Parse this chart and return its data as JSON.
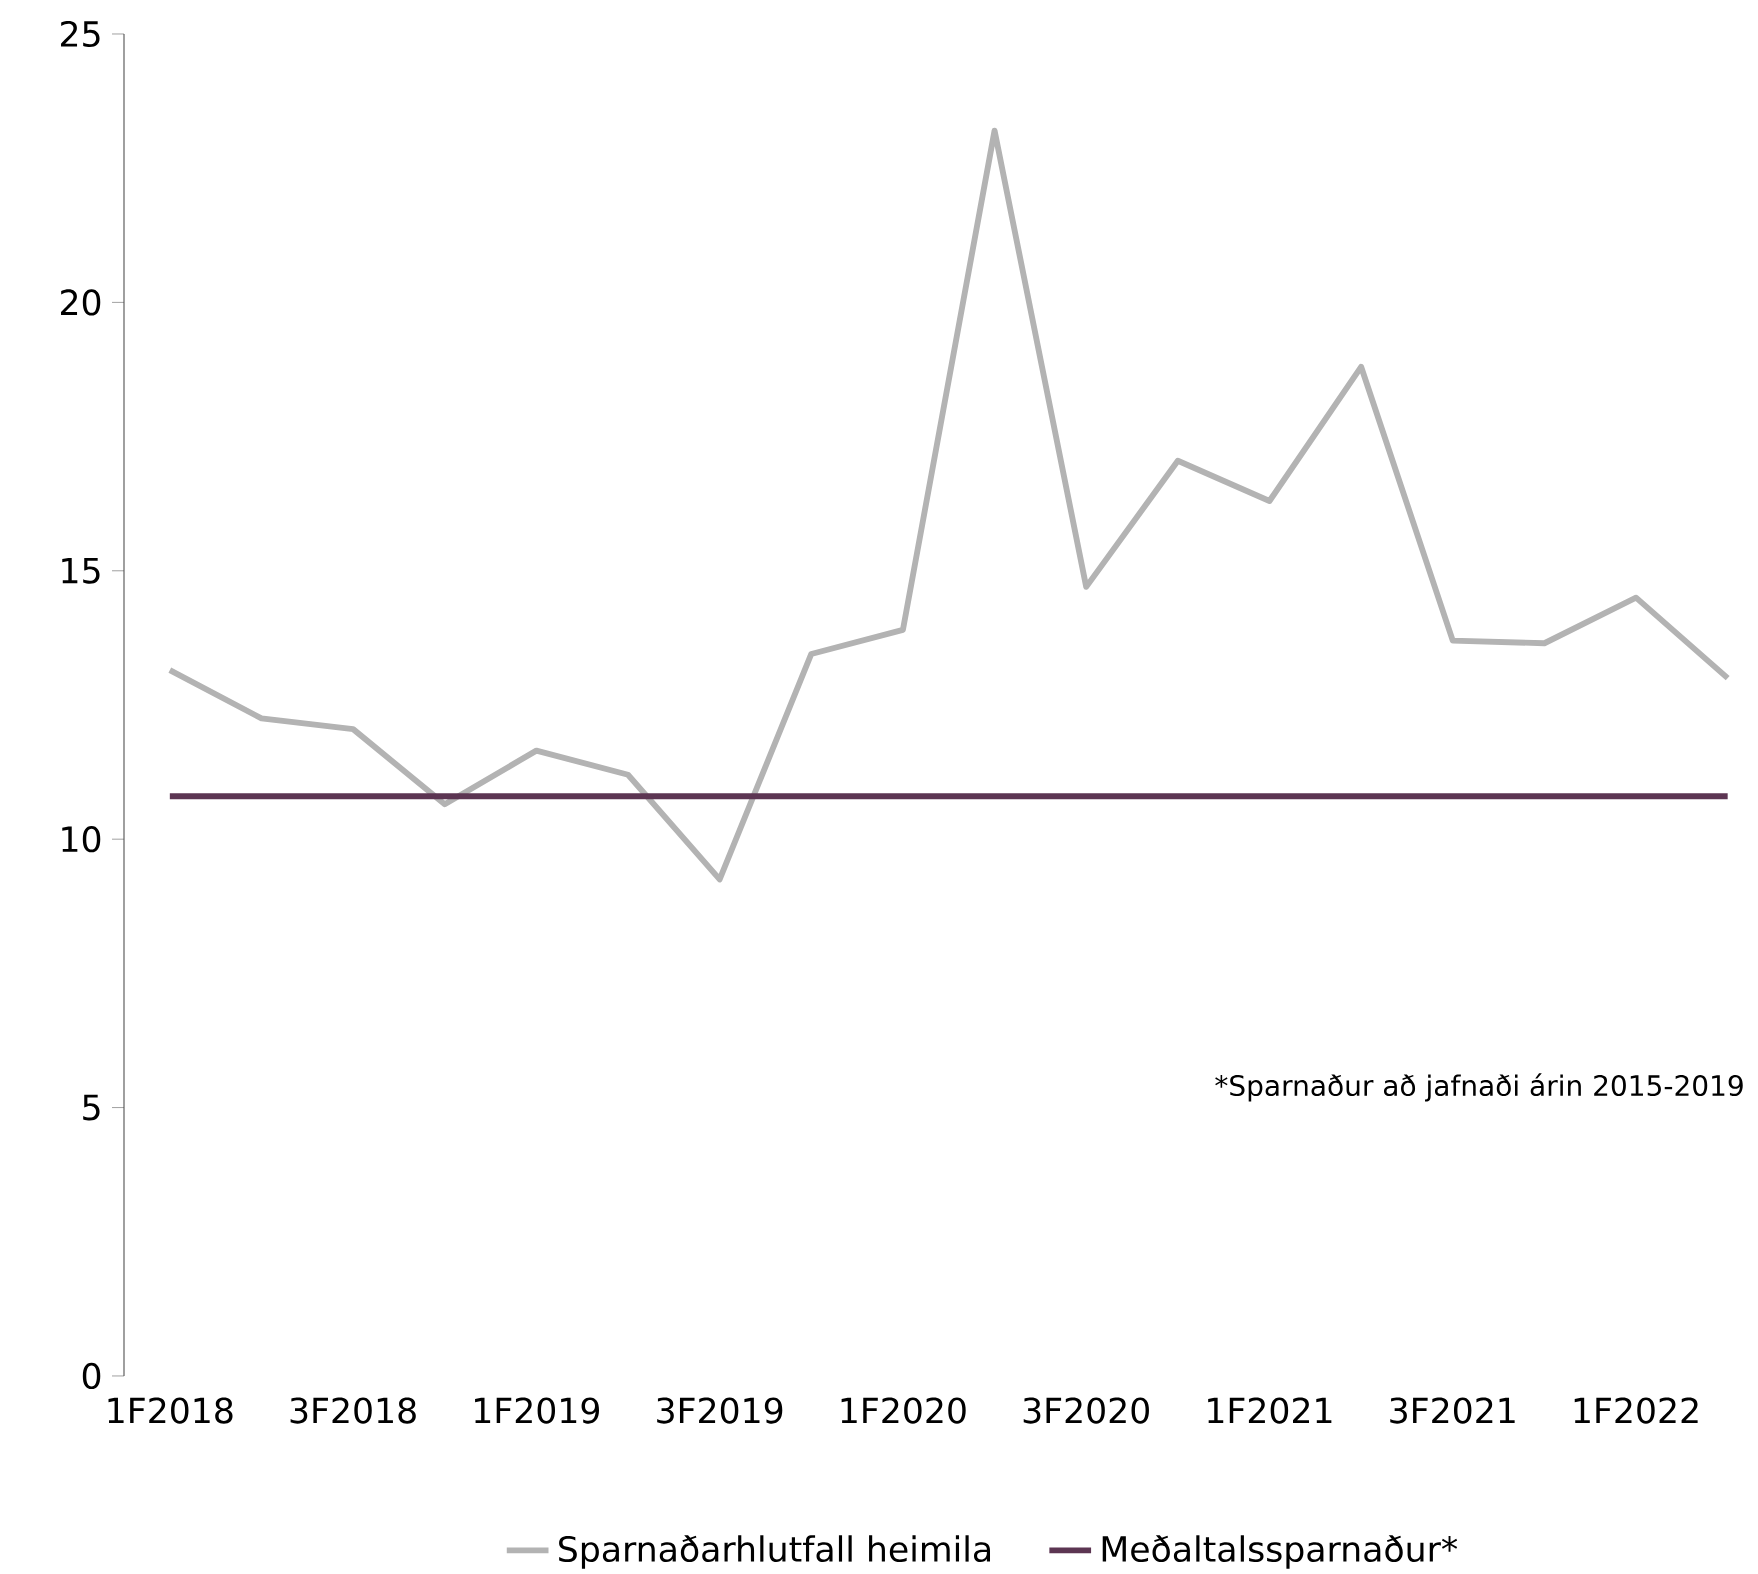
{
  "chart_data": {
    "type": "line",
    "categories": [
      "1F2018",
      null,
      "3F2018",
      null,
      "1F2019",
      null,
      "3F2019",
      null,
      "1F2020",
      null,
      "3F2020",
      null,
      "1F2021",
      null,
      "3F2021",
      null,
      "1F2022",
      null
    ],
    "series": [
      {
        "name": "Sparnaðarhlutfall heimila",
        "color": "#b3b3b3",
        "values": [
          13.15,
          12.25,
          12.05,
          10.65,
          11.65,
          11.2,
          9.25,
          13.45,
          13.9,
          23.2,
          14.7,
          17.05,
          16.3,
          18.8,
          13.7,
          13.65,
          14.5,
          13.0
        ]
      },
      {
        "name": "Meðaltalssparnaður*",
        "color": "#5c3552",
        "values": [
          10.8,
          10.8,
          10.8,
          10.8,
          10.8,
          10.8,
          10.8,
          10.8,
          10.8,
          10.8,
          10.8,
          10.8,
          10.8,
          10.8,
          10.8,
          10.8,
          10.8,
          10.8
        ]
      }
    ],
    "ylim": [
      0,
      25
    ],
    "yticks": [
      0,
      5,
      10,
      15,
      20,
      25
    ],
    "annotations": [
      "*Sparnaður að jafnaði árin 2015-2019"
    ],
    "legend": "bottom",
    "grid": false,
    "marker": "none",
    "line_style": "solid"
  }
}
